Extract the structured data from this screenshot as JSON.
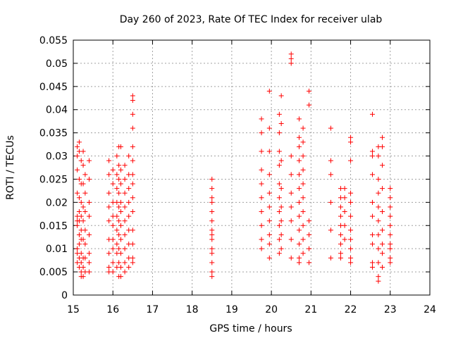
{
  "chart_data": {
    "type": "scatter",
    "title": "Day 260 of 2023, Rate Of TEC Index for receiver ulab",
    "xlabel": "GPS time / hours",
    "ylabel": "ROTI / TECUs",
    "xlim": [
      15,
      24
    ],
    "ylim": [
      0,
      0.055
    ],
    "x_ticks": [
      "15",
      "16",
      "17",
      "18",
      "19",
      "20",
      "21",
      "22",
      "23",
      "24"
    ],
    "y_ticks": [
      "0",
      "0.005",
      "0.01",
      "0.015",
      "0.02",
      "0.025",
      "0.03",
      "0.035",
      "0.04",
      "0.045",
      "0.05",
      "0.055"
    ],
    "grid": true,
    "marker": "+",
    "marker_color": "#ff0000",
    "series": [
      {
        "points": [
          [
            15.1,
            0.032
          ],
          [
            15.1,
            0.03
          ],
          [
            15.1,
            0.027
          ],
          [
            15.1,
            0.022
          ],
          [
            15.1,
            0.017
          ],
          [
            15.1,
            0.016
          ],
          [
            15.1,
            0.015
          ],
          [
            15.1,
            0.01
          ],
          [
            15.1,
            0.009
          ],
          [
            15.1,
            0.007
          ],
          [
            15.15,
            0.033
          ],
          [
            15.15,
            0.031
          ],
          [
            15.15,
            0.025
          ],
          [
            15.15,
            0.021
          ],
          [
            15.15,
            0.018
          ],
          [
            15.15,
            0.016
          ],
          [
            15.15,
            0.013
          ],
          [
            15.15,
            0.011
          ],
          [
            15.15,
            0.008
          ],
          [
            15.15,
            0.006
          ],
          [
            15.2,
            0.029
          ],
          [
            15.2,
            0.024
          ],
          [
            15.2,
            0.02
          ],
          [
            15.2,
            0.017
          ],
          [
            15.2,
            0.014
          ],
          [
            15.2,
            0.012
          ],
          [
            15.2,
            0.009
          ],
          [
            15.2,
            0.007
          ],
          [
            15.2,
            0.005
          ],
          [
            15.2,
            0.004
          ],
          [
            15.25,
            0.031
          ],
          [
            15.25,
            0.028
          ],
          [
            15.25,
            0.024
          ],
          [
            15.25,
            0.019
          ],
          [
            15.25,
            0.016
          ],
          [
            15.25,
            0.012
          ],
          [
            15.25,
            0.008
          ],
          [
            15.25,
            0.006
          ],
          [
            15.25,
            0.004
          ],
          [
            15.3,
            0.026
          ],
          [
            15.3,
            0.022
          ],
          [
            15.3,
            0.018
          ],
          [
            15.3,
            0.014
          ],
          [
            15.3,
            0.011
          ],
          [
            15.3,
            0.008
          ],
          [
            15.3,
            0.005
          ],
          [
            15.4,
            0.029
          ],
          [
            15.4,
            0.025
          ],
          [
            15.4,
            0.02
          ],
          [
            15.4,
            0.017
          ],
          [
            15.4,
            0.013
          ],
          [
            15.4,
            0.009
          ],
          [
            15.4,
            0.007
          ],
          [
            15.4,
            0.005
          ],
          [
            15.9,
            0.029
          ],
          [
            15.9,
            0.026
          ],
          [
            15.9,
            0.022
          ],
          [
            15.9,
            0.019
          ],
          [
            15.9,
            0.016
          ],
          [
            15.9,
            0.012
          ],
          [
            15.9,
            0.009
          ],
          [
            15.9,
            0.006
          ],
          [
            15.9,
            0.005
          ],
          [
            16.0,
            0.027
          ],
          [
            16.0,
            0.024
          ],
          [
            16.0,
            0.02
          ],
          [
            16.0,
            0.017
          ],
          [
            16.0,
            0.015
          ],
          [
            16.0,
            0.012
          ],
          [
            16.0,
            0.01
          ],
          [
            16.0,
            0.007
          ],
          [
            16.0,
            0.005
          ],
          [
            16.1,
            0.03
          ],
          [
            16.1,
            0.026
          ],
          [
            16.1,
            0.023
          ],
          [
            16.1,
            0.02
          ],
          [
            16.1,
            0.017
          ],
          [
            16.1,
            0.014
          ],
          [
            16.1,
            0.011
          ],
          [
            16.1,
            0.009
          ],
          [
            16.1,
            0.006
          ],
          [
            16.15,
            0.032
          ],
          [
            16.15,
            0.028
          ],
          [
            16.15,
            0.025
          ],
          [
            16.15,
            0.022
          ],
          [
            16.15,
            0.019
          ],
          [
            16.15,
            0.016
          ],
          [
            16.15,
            0.013
          ],
          [
            16.15,
            0.01
          ],
          [
            16.15,
            0.007
          ],
          [
            16.15,
            0.004
          ],
          [
            16.2,
            0.032
          ],
          [
            16.2,
            0.027
          ],
          [
            16.2,
            0.024
          ],
          [
            16.2,
            0.02
          ],
          [
            16.2,
            0.018
          ],
          [
            16.2,
            0.015
          ],
          [
            16.2,
            0.012
          ],
          [
            16.2,
            0.009
          ],
          [
            16.2,
            0.006
          ],
          [
            16.2,
            0.004
          ],
          [
            16.3,
            0.028
          ],
          [
            16.3,
            0.025
          ],
          [
            16.3,
            0.022
          ],
          [
            16.3,
            0.019
          ],
          [
            16.3,
            0.016
          ],
          [
            16.3,
            0.013
          ],
          [
            16.3,
            0.01
          ],
          [
            16.3,
            0.007
          ],
          [
            16.3,
            0.005
          ],
          [
            16.4,
            0.03
          ],
          [
            16.4,
            0.026
          ],
          [
            16.4,
            0.023
          ],
          [
            16.4,
            0.02
          ],
          [
            16.4,
            0.017
          ],
          [
            16.4,
            0.014
          ],
          [
            16.4,
            0.011
          ],
          [
            16.4,
            0.008
          ],
          [
            16.4,
            0.006
          ],
          [
            16.5,
            0.043
          ],
          [
            16.5,
            0.042
          ],
          [
            16.5,
            0.039
          ],
          [
            16.5,
            0.036
          ],
          [
            16.5,
            0.032
          ],
          [
            16.5,
            0.029
          ],
          [
            16.5,
            0.026
          ],
          [
            16.5,
            0.024
          ],
          [
            16.5,
            0.021
          ],
          [
            16.5,
            0.018
          ],
          [
            16.5,
            0.014
          ],
          [
            16.5,
            0.011
          ],
          [
            16.5,
            0.008
          ],
          [
            16.5,
            0.007
          ],
          [
            18.5,
            0.025
          ],
          [
            18.5,
            0.023
          ],
          [
            18.5,
            0.021
          ],
          [
            18.5,
            0.02
          ],
          [
            18.5,
            0.018
          ],
          [
            18.5,
            0.016
          ],
          [
            18.5,
            0.014
          ],
          [
            18.5,
            0.013
          ],
          [
            18.5,
            0.012
          ],
          [
            18.5,
            0.01
          ],
          [
            18.5,
            0.009
          ],
          [
            18.5,
            0.007
          ],
          [
            18.5,
            0.005
          ],
          [
            18.5,
            0.004
          ],
          [
            19.75,
            0.038
          ],
          [
            19.75,
            0.035
          ],
          [
            19.75,
            0.031
          ],
          [
            19.75,
            0.027
          ],
          [
            19.75,
            0.024
          ],
          [
            19.75,
            0.021
          ],
          [
            19.75,
            0.018
          ],
          [
            19.75,
            0.015
          ],
          [
            19.75,
            0.012
          ],
          [
            19.75,
            0.01
          ],
          [
            19.95,
            0.044
          ],
          [
            19.95,
            0.036
          ],
          [
            19.95,
            0.031
          ],
          [
            19.95,
            0.026
          ],
          [
            19.95,
            0.022
          ],
          [
            19.95,
            0.019
          ],
          [
            19.95,
            0.016
          ],
          [
            19.95,
            0.013
          ],
          [
            19.95,
            0.011
          ],
          [
            19.95,
            0.008
          ],
          [
            20.2,
            0.039
          ],
          [
            20.2,
            0.035
          ],
          [
            20.2,
            0.031
          ],
          [
            20.2,
            0.028
          ],
          [
            20.2,
            0.024
          ],
          [
            20.2,
            0.021
          ],
          [
            20.2,
            0.018
          ],
          [
            20.2,
            0.015
          ],
          [
            20.2,
            0.012
          ],
          [
            20.2,
            0.009
          ],
          [
            20.25,
            0.043
          ],
          [
            20.25,
            0.037
          ],
          [
            20.25,
            0.029
          ],
          [
            20.25,
            0.023
          ],
          [
            20.25,
            0.019
          ],
          [
            20.25,
            0.016
          ],
          [
            20.25,
            0.013
          ],
          [
            20.25,
            0.01
          ],
          [
            20.5,
            0.052
          ],
          [
            20.5,
            0.051
          ],
          [
            20.5,
            0.05
          ],
          [
            20.5,
            0.03
          ],
          [
            20.5,
            0.026
          ],
          [
            20.5,
            0.022
          ],
          [
            20.5,
            0.019
          ],
          [
            20.5,
            0.016
          ],
          [
            20.5,
            0.012
          ],
          [
            20.5,
            0.008
          ],
          [
            20.7,
            0.038
          ],
          [
            20.7,
            0.034
          ],
          [
            20.7,
            0.032
          ],
          [
            20.7,
            0.029
          ],
          [
            20.7,
            0.026
          ],
          [
            20.7,
            0.023
          ],
          [
            20.7,
            0.02
          ],
          [
            20.7,
            0.017
          ],
          [
            20.7,
            0.014
          ],
          [
            20.7,
            0.011
          ],
          [
            20.7,
            0.008
          ],
          [
            20.7,
            0.007
          ],
          [
            20.8,
            0.036
          ],
          [
            20.8,
            0.033
          ],
          [
            20.8,
            0.03
          ],
          [
            20.8,
            0.027
          ],
          [
            20.8,
            0.024
          ],
          [
            20.8,
            0.021
          ],
          [
            20.8,
            0.018
          ],
          [
            20.8,
            0.015
          ],
          [
            20.8,
            0.012
          ],
          [
            20.8,
            0.009
          ],
          [
            20.95,
            0.044
          ],
          [
            20.95,
            0.041
          ],
          [
            20.95,
            0.016
          ],
          [
            20.95,
            0.013
          ],
          [
            20.95,
            0.01
          ],
          [
            20.95,
            0.007
          ],
          [
            21.5,
            0.036
          ],
          [
            21.5,
            0.029
          ],
          [
            21.5,
            0.026
          ],
          [
            21.5,
            0.02
          ],
          [
            21.5,
            0.014
          ],
          [
            21.5,
            0.008
          ],
          [
            21.75,
            0.023
          ],
          [
            21.75,
            0.021
          ],
          [
            21.75,
            0.019
          ],
          [
            21.75,
            0.017
          ],
          [
            21.75,
            0.015
          ],
          [
            21.75,
            0.013
          ],
          [
            21.75,
            0.011
          ],
          [
            21.75,
            0.009
          ],
          [
            21.75,
            0.008
          ],
          [
            21.85,
            0.023
          ],
          [
            21.85,
            0.021
          ],
          [
            21.85,
            0.018
          ],
          [
            21.85,
            0.015
          ],
          [
            21.85,
            0.012
          ],
          [
            22.0,
            0.034
          ],
          [
            22.0,
            0.033
          ],
          [
            22.0,
            0.029
          ],
          [
            22.0,
            0.022
          ],
          [
            22.0,
            0.02
          ],
          [
            22.0,
            0.017
          ],
          [
            22.0,
            0.014
          ],
          [
            22.0,
            0.012
          ],
          [
            22.0,
            0.01
          ],
          [
            22.0,
            0.008
          ],
          [
            22.0,
            0.007
          ],
          [
            22.55,
            0.039
          ],
          [
            22.55,
            0.031
          ],
          [
            22.55,
            0.03
          ],
          [
            22.55,
            0.026
          ],
          [
            22.55,
            0.02
          ],
          [
            22.55,
            0.017
          ],
          [
            22.55,
            0.013
          ],
          [
            22.55,
            0.011
          ],
          [
            22.55,
            0.007
          ],
          [
            22.55,
            0.006
          ],
          [
            22.7,
            0.032
          ],
          [
            22.7,
            0.03
          ],
          [
            22.7,
            0.025
          ],
          [
            22.7,
            0.022
          ],
          [
            22.7,
            0.019
          ],
          [
            22.7,
            0.016
          ],
          [
            22.7,
            0.013
          ],
          [
            22.7,
            0.01
          ],
          [
            22.7,
            0.007
          ],
          [
            22.7,
            0.004
          ],
          [
            22.7,
            0.003
          ],
          [
            22.8,
            0.034
          ],
          [
            22.8,
            0.032
          ],
          [
            22.8,
            0.028
          ],
          [
            22.8,
            0.023
          ],
          [
            22.8,
            0.018
          ],
          [
            22.8,
            0.014
          ],
          [
            22.8,
            0.011
          ],
          [
            22.8,
            0.009
          ],
          [
            22.8,
            0.006
          ],
          [
            23.0,
            0.023
          ],
          [
            23.0,
            0.021
          ],
          [
            23.0,
            0.019
          ],
          [
            23.0,
            0.017
          ],
          [
            23.0,
            0.015
          ],
          [
            23.0,
            0.013
          ],
          [
            23.0,
            0.011
          ],
          [
            23.0,
            0.01
          ],
          [
            23.0,
            0.008
          ],
          [
            23.0,
            0.007
          ]
        ]
      }
    ]
  }
}
